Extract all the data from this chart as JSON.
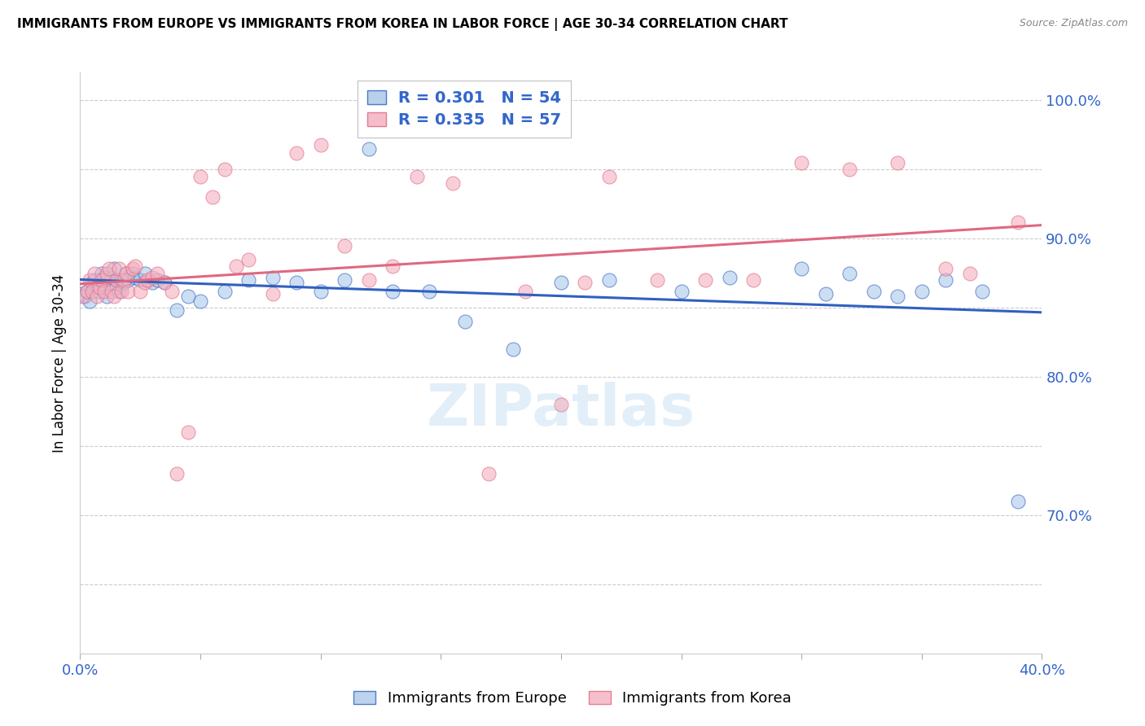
{
  "title": "IMMIGRANTS FROM EUROPE VS IMMIGRANTS FROM KOREA IN LABOR FORCE | AGE 30-34 CORRELATION CHART",
  "source": "Source: ZipAtlas.com",
  "ylabel": "In Labor Force | Age 30-34",
  "x_min": 0.0,
  "x_max": 0.4,
  "y_min": 0.6,
  "y_max": 1.02,
  "legend_europe_R": "0.301",
  "legend_europe_N": "54",
  "legend_korea_R": "0.335",
  "legend_korea_N": "57",
  "europe_color": "#aac8e8",
  "korea_color": "#f4b0c0",
  "europe_line_color": "#3060c0",
  "korea_line_color": "#e06880",
  "europe_x": [
    0.001,
    0.002,
    0.003,
    0.004,
    0.005,
    0.006,
    0.007,
    0.008,
    0.009,
    0.01,
    0.011,
    0.012,
    0.013,
    0.014,
    0.015,
    0.016,
    0.017,
    0.018,
    0.019,
    0.02,
    0.022,
    0.023,
    0.025,
    0.027,
    0.03,
    0.032,
    0.035,
    0.04,
    0.045,
    0.05,
    0.06,
    0.07,
    0.08,
    0.09,
    0.1,
    0.11,
    0.12,
    0.13,
    0.145,
    0.16,
    0.18,
    0.2,
    0.22,
    0.25,
    0.27,
    0.3,
    0.31,
    0.32,
    0.33,
    0.34,
    0.35,
    0.36,
    0.375,
    0.39
  ],
  "europe_y": [
    0.86,
    0.858,
    0.862,
    0.855,
    0.868,
    0.87,
    0.865,
    0.862,
    0.875,
    0.872,
    0.858,
    0.868,
    0.872,
    0.878,
    0.865,
    0.862,
    0.87,
    0.868,
    0.875,
    0.87,
    0.875,
    0.872,
    0.87,
    0.875,
    0.868,
    0.87,
    0.868,
    0.848,
    0.858,
    0.855,
    0.862,
    0.87,
    0.872,
    0.868,
    0.862,
    0.87,
    0.965,
    0.862,
    0.862,
    0.84,
    0.82,
    0.868,
    0.87,
    0.862,
    0.872,
    0.878,
    0.86,
    0.875,
    0.862,
    0.858,
    0.862,
    0.87,
    0.862,
    0.71
  ],
  "korea_x": [
    0.001,
    0.003,
    0.004,
    0.005,
    0.006,
    0.007,
    0.008,
    0.009,
    0.01,
    0.011,
    0.012,
    0.013,
    0.014,
    0.015,
    0.016,
    0.017,
    0.018,
    0.019,
    0.02,
    0.022,
    0.023,
    0.025,
    0.027,
    0.028,
    0.03,
    0.032,
    0.035,
    0.038,
    0.04,
    0.045,
    0.05,
    0.055,
    0.06,
    0.065,
    0.07,
    0.08,
    0.09,
    0.1,
    0.11,
    0.12,
    0.13,
    0.14,
    0.155,
    0.17,
    0.185,
    0.2,
    0.21,
    0.22,
    0.24,
    0.26,
    0.28,
    0.3,
    0.32,
    0.34,
    0.36,
    0.37,
    0.39
  ],
  "korea_y": [
    0.858,
    0.862,
    0.87,
    0.862,
    0.875,
    0.858,
    0.865,
    0.87,
    0.862,
    0.875,
    0.878,
    0.862,
    0.858,
    0.87,
    0.878,
    0.862,
    0.87,
    0.875,
    0.862,
    0.878,
    0.88,
    0.862,
    0.868,
    0.87,
    0.872,
    0.875,
    0.868,
    0.862,
    0.73,
    0.76,
    0.945,
    0.93,
    0.95,
    0.88,
    0.885,
    0.86,
    0.962,
    0.968,
    0.895,
    0.87,
    0.88,
    0.945,
    0.94,
    0.73,
    0.862,
    0.78,
    0.868,
    0.945,
    0.87,
    0.87,
    0.87,
    0.955,
    0.95,
    0.955,
    0.878,
    0.875,
    0.912
  ]
}
